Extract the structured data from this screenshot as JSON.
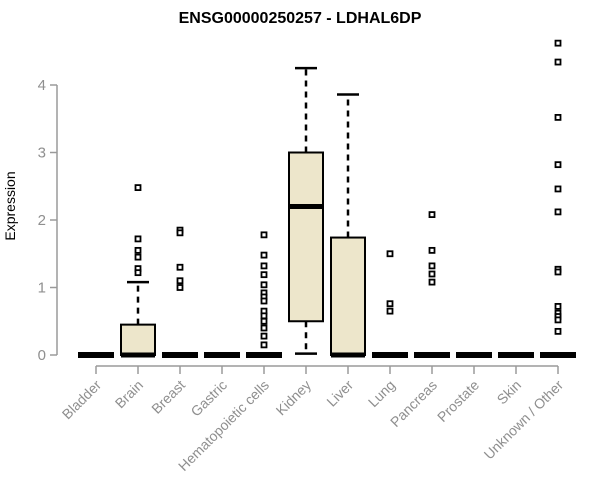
{
  "chart_data": {
    "type": "boxplot",
    "title": "ENSG00000250257 - LDHAL6DP",
    "ylabel": "Expression",
    "xlabel": "",
    "ylim": [
      0,
      4
    ],
    "yticks": [
      0,
      1,
      2,
      3,
      4
    ],
    "grid": false,
    "legend": false,
    "categories": [
      "Bladder",
      "Brain",
      "Breast",
      "Gastric",
      "Hematopoietic cells",
      "Kidney",
      "Liver",
      "Lung",
      "Pancreas",
      "Prostate",
      "Skin",
      "Unknown / Other"
    ],
    "boxes": [
      {
        "name": "Bladder",
        "q1": 0,
        "median": 0,
        "q3": 0,
        "whisker_low": 0,
        "whisker_high": 0,
        "outliers": []
      },
      {
        "name": "Brain",
        "q1": 0,
        "median": 0,
        "q3": 0.45,
        "whisker_low": 0,
        "whisker_high": 1.08,
        "outliers": [
          2.48,
          1.72,
          1.55,
          1.45,
          1.28,
          1.22
        ]
      },
      {
        "name": "Breast",
        "q1": 0,
        "median": 0,
        "q3": 0,
        "whisker_low": 0,
        "whisker_high": 0,
        "outliers": [
          1.85,
          1.81,
          1.3,
          1.1,
          1.0
        ]
      },
      {
        "name": "Gastric",
        "q1": 0,
        "median": 0,
        "q3": 0,
        "whisker_low": 0,
        "whisker_high": 0,
        "outliers": []
      },
      {
        "name": "Hematopoietic cells",
        "q1": 0,
        "median": 0,
        "q3": 0,
        "whisker_low": 0,
        "whisker_high": 0,
        "outliers": [
          1.78,
          1.48,
          1.32,
          1.19,
          1.04,
          0.92,
          0.86,
          0.8,
          0.65,
          0.58,
          0.5,
          0.4,
          0.28,
          0.15
        ]
      },
      {
        "name": "Kidney",
        "q1": 0.5,
        "median": 2.2,
        "q3": 3.0,
        "whisker_low": 0.02,
        "whisker_high": 4.25,
        "outliers": []
      },
      {
        "name": "Liver",
        "q1": 0,
        "median": 0,
        "q3": 1.74,
        "whisker_low": 0,
        "whisker_high": 3.86,
        "outliers": []
      },
      {
        "name": "Lung",
        "q1": 0,
        "median": 0,
        "q3": 0,
        "whisker_low": 0,
        "whisker_high": 0,
        "outliers": [
          1.5,
          0.76,
          0.65
        ]
      },
      {
        "name": "Pancreas",
        "q1": 0,
        "median": 0,
        "q3": 0,
        "whisker_low": 0,
        "whisker_high": 0,
        "outliers": [
          2.08,
          1.55,
          1.32,
          1.2,
          1.08
        ]
      },
      {
        "name": "Prostate",
        "q1": 0,
        "median": 0,
        "q3": 0,
        "whisker_low": 0,
        "whisker_high": 0,
        "outliers": []
      },
      {
        "name": "Skin",
        "q1": 0,
        "median": 0,
        "q3": 0,
        "whisker_low": 0,
        "whisker_high": 0,
        "outliers": []
      },
      {
        "name": "Unknown / Other",
        "q1": 0,
        "median": 0,
        "q3": 0,
        "whisker_low": 0,
        "whisker_high": 0,
        "outliers": [
          4.62,
          4.34,
          3.52,
          2.82,
          2.46,
          2.12,
          1.27,
          1.23,
          0.72,
          0.62,
          0.57,
          0.52,
          0.35
        ]
      }
    ],
    "colors": {
      "box_fill": "#EDE6CB",
      "box_border": "#000000",
      "median": "#000000",
      "whisker": "#000000",
      "outlier_fill": "#FFFFFF",
      "outlier_border": "#000000",
      "axis": "#9A9A9A",
      "tick_label": "#8F8F8F",
      "title": "#000000",
      "background": "#FFFFFF"
    }
  }
}
